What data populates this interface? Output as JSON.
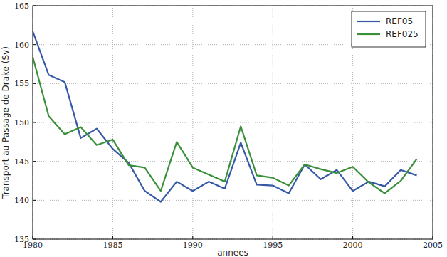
{
  "chart_data": {
    "type": "line",
    "x_label": "annees",
    "y_label": "Transport au Passage de Drake (Sv)",
    "x": [
      1980,
      1981,
      1982,
      1983,
      1984,
      1985,
      1986,
      1987,
      1988,
      1989,
      1990,
      1991,
      1992,
      1993,
      1994,
      1995,
      1996,
      1997,
      1998,
      1999,
      2000,
      2001,
      2002,
      2003,
      2004
    ],
    "series": [
      {
        "name": "REF05",
        "color": "#3659a6",
        "values": [
          161.7,
          156.1,
          155.2,
          148.0,
          149.2,
          146.6,
          144.8,
          141.2,
          139.8,
          142.4,
          141.2,
          142.4,
          141.5,
          147.4,
          142.0,
          141.9,
          140.9,
          144.6,
          142.7,
          143.9,
          141.2,
          142.4,
          141.8,
          143.9,
          143.2
        ]
      },
      {
        "name": "REF025",
        "color": "#3a8f3a",
        "values": [
          158.4,
          150.8,
          148.5,
          149.4,
          147.1,
          147.8,
          144.5,
          144.2,
          141.2,
          147.5,
          144.2,
          143.3,
          142.4,
          149.5,
          143.2,
          142.9,
          141.9,
          144.6,
          144.0,
          143.5,
          144.3,
          142.3,
          140.9,
          142.5,
          145.3
        ]
      }
    ],
    "xlim": [
      1980,
      2005
    ],
    "xticks": [
      1980,
      1985,
      1990,
      1995,
      2000,
      2005
    ],
    "ylim": [
      135,
      165
    ],
    "yticks": [
      135,
      140,
      145,
      150,
      155,
      160,
      165
    ],
    "grid": true,
    "legend": "upper right"
  }
}
